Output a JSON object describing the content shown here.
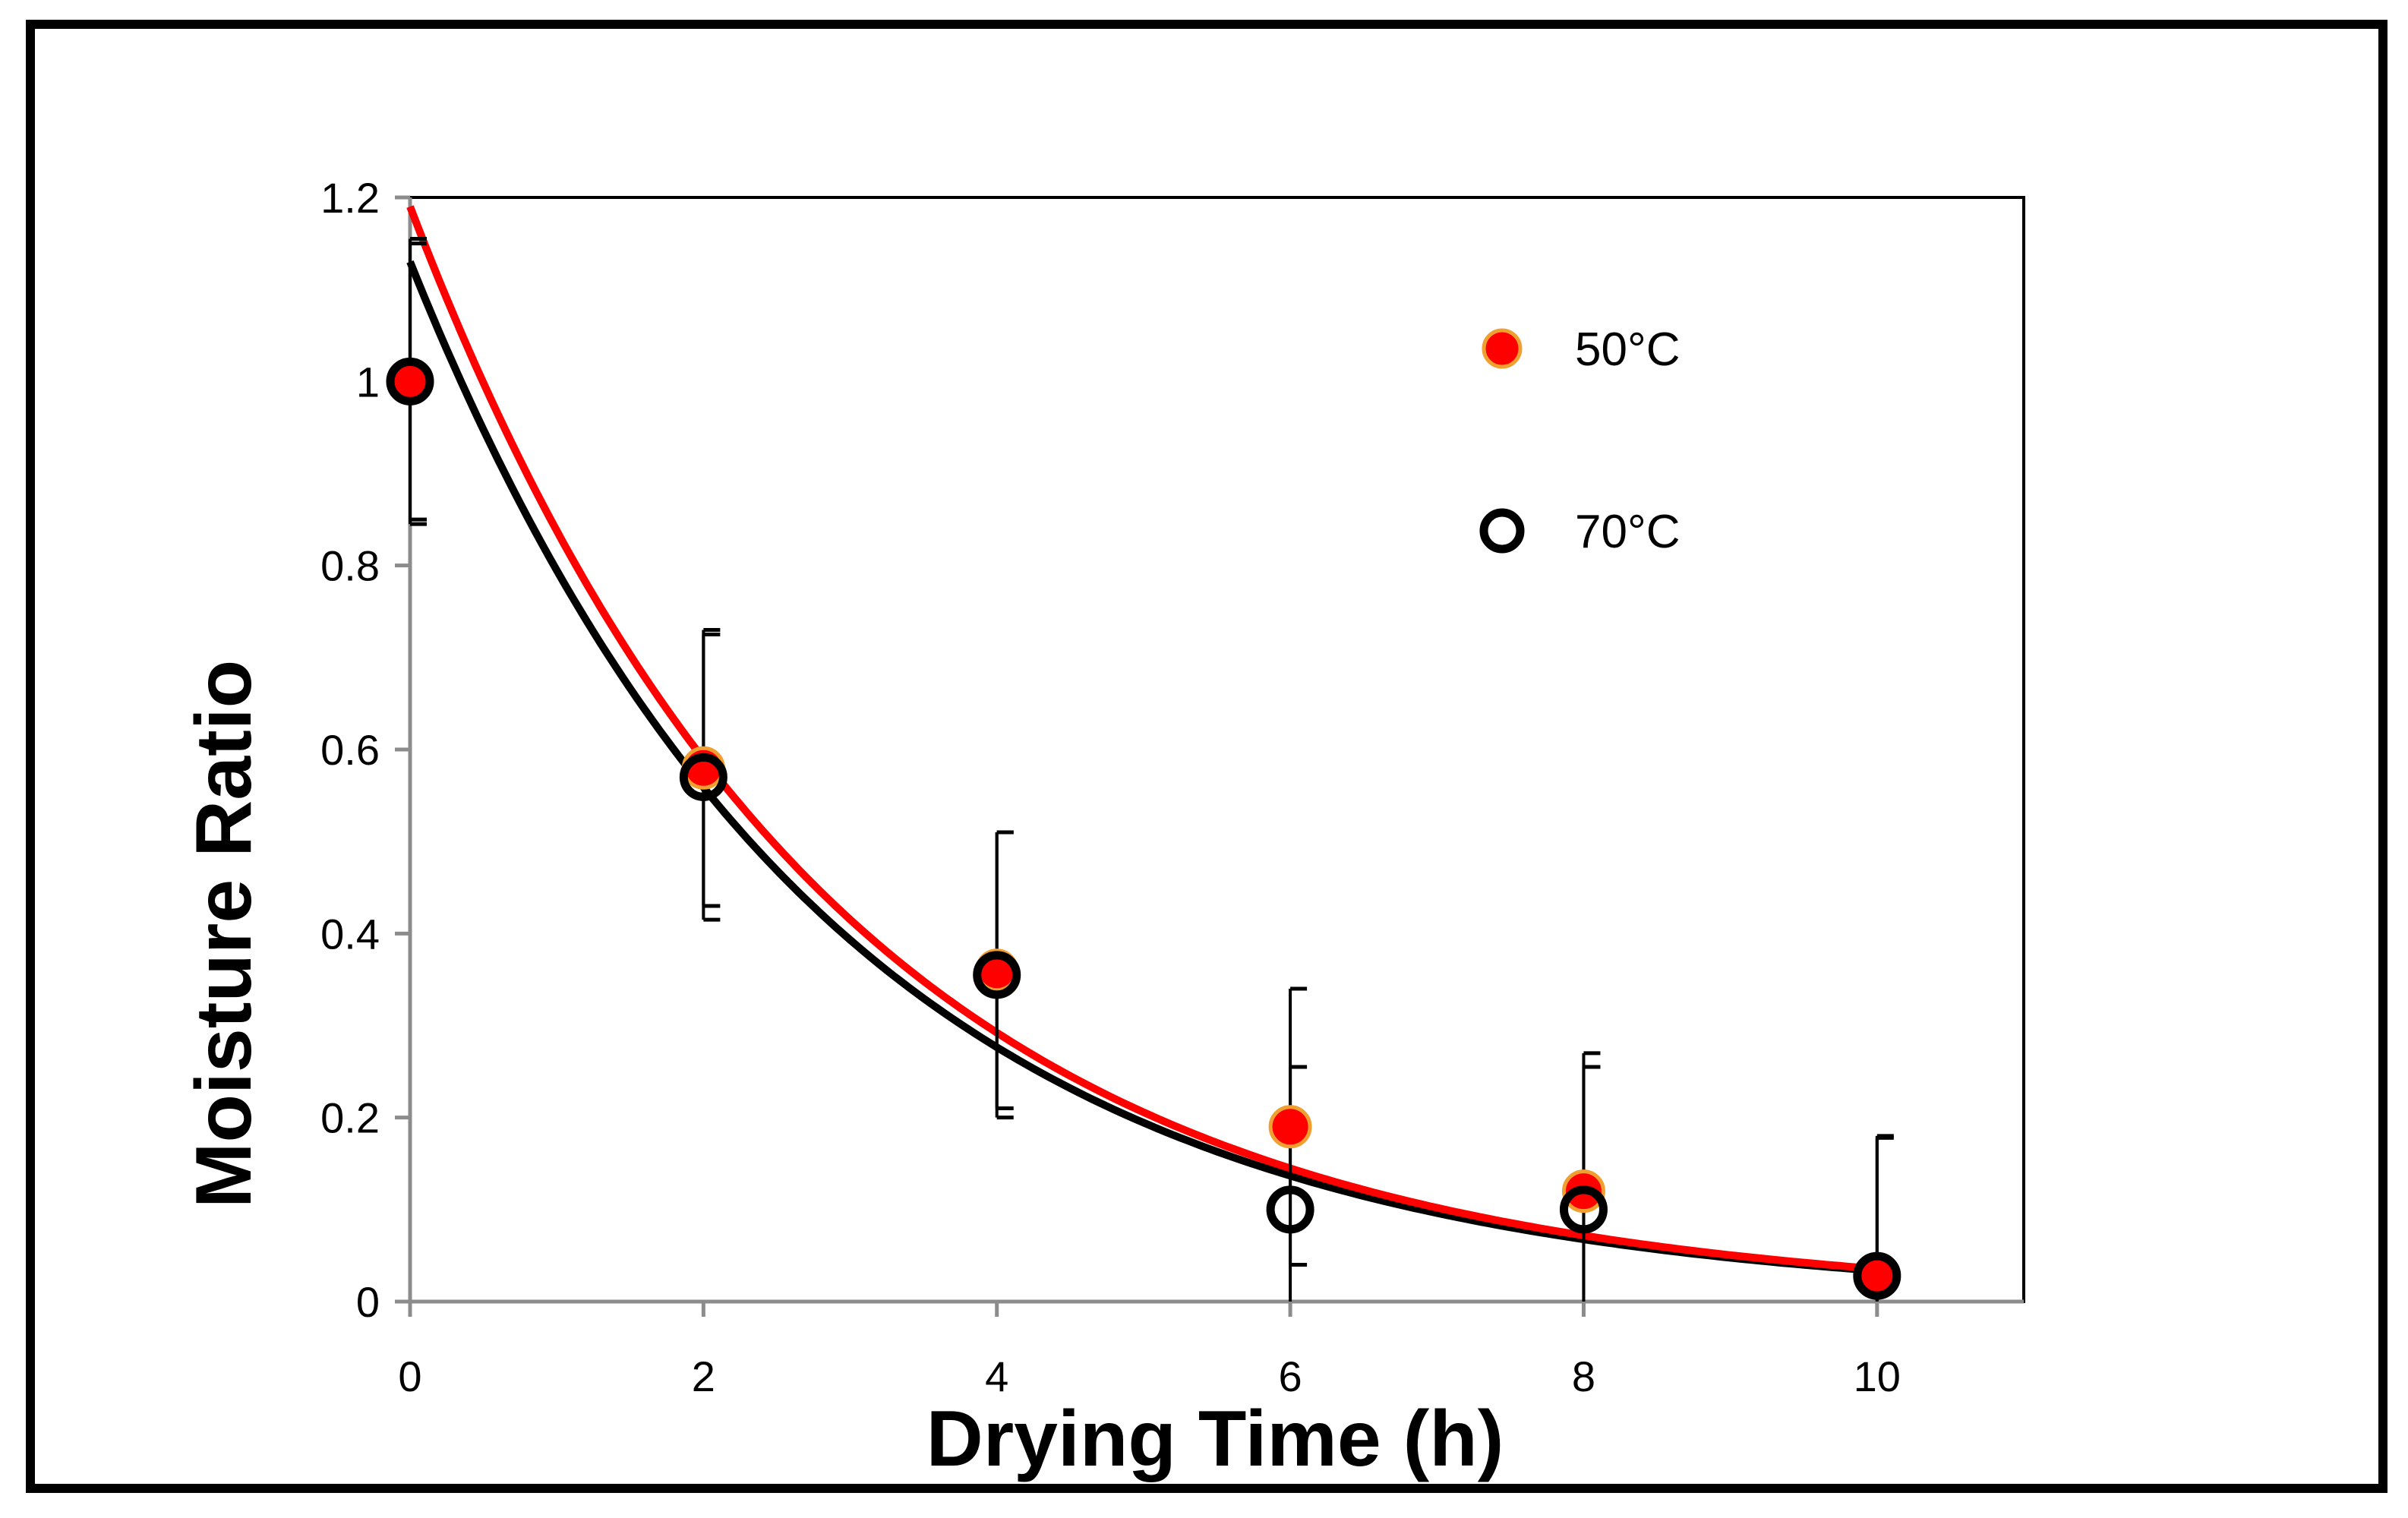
{
  "chart_data": {
    "type": "scatter",
    "title": "",
    "xlabel": "Drying Time (h)",
    "ylabel": "Moisture Ratio",
    "xlim": [
      0,
      11
    ],
    "ylim": [
      0,
      1.2
    ],
    "xticks": [
      0,
      2,
      4,
      6,
      8,
      10
    ],
    "xtick_labels": [
      "0",
      "2",
      "4",
      "6",
      "8",
      "10"
    ],
    "yticks": [
      0,
      0.2,
      0.4,
      0.6,
      0.8,
      1.0,
      1.2
    ],
    "ytick_labels": [
      "0",
      "0.2",
      "0.4",
      "0.6",
      "0.8",
      "1",
      "1.2"
    ],
    "grid": false,
    "legend_position": "top-right",
    "series": [
      {
        "name": "50°C",
        "marker": "filled-circle",
        "color": "#ff0000",
        "marker_edge_color": "#f0a030",
        "x": [
          0,
          2,
          4,
          6,
          8,
          10
        ],
        "y": [
          1.0,
          0.58,
          0.36,
          0.19,
          0.12,
          0.03
        ],
        "error_upper": [
          0.15,
          0.15,
          0.15,
          0.15,
          0.15,
          0.15
        ],
        "error_lower": [
          0.15,
          0.15,
          0.15,
          0.15,
          0.15,
          0.15
        ],
        "fit": {
          "model": "exponential",
          "a": 1.19,
          "k": 0.351,
          "color": "#ff0000"
        }
      },
      {
        "name": "70°C",
        "marker": "open-circle",
        "color": "#000000",
        "x": [
          0,
          2,
          4,
          6,
          8,
          10
        ],
        "y": [
          1.0,
          0.57,
          0.355,
          0.1,
          0.1,
          0.028
        ],
        "error_upper": [
          0.155,
          0.155,
          0.155,
          0.155,
          0.155,
          0.15
        ],
        "error_lower": [
          0.155,
          0.155,
          0.155,
          0.155,
          0.155,
          0.15
        ],
        "fit": {
          "model": "exponential",
          "a": 1.13,
          "k": 0.352,
          "color": "#000000"
        }
      }
    ]
  }
}
